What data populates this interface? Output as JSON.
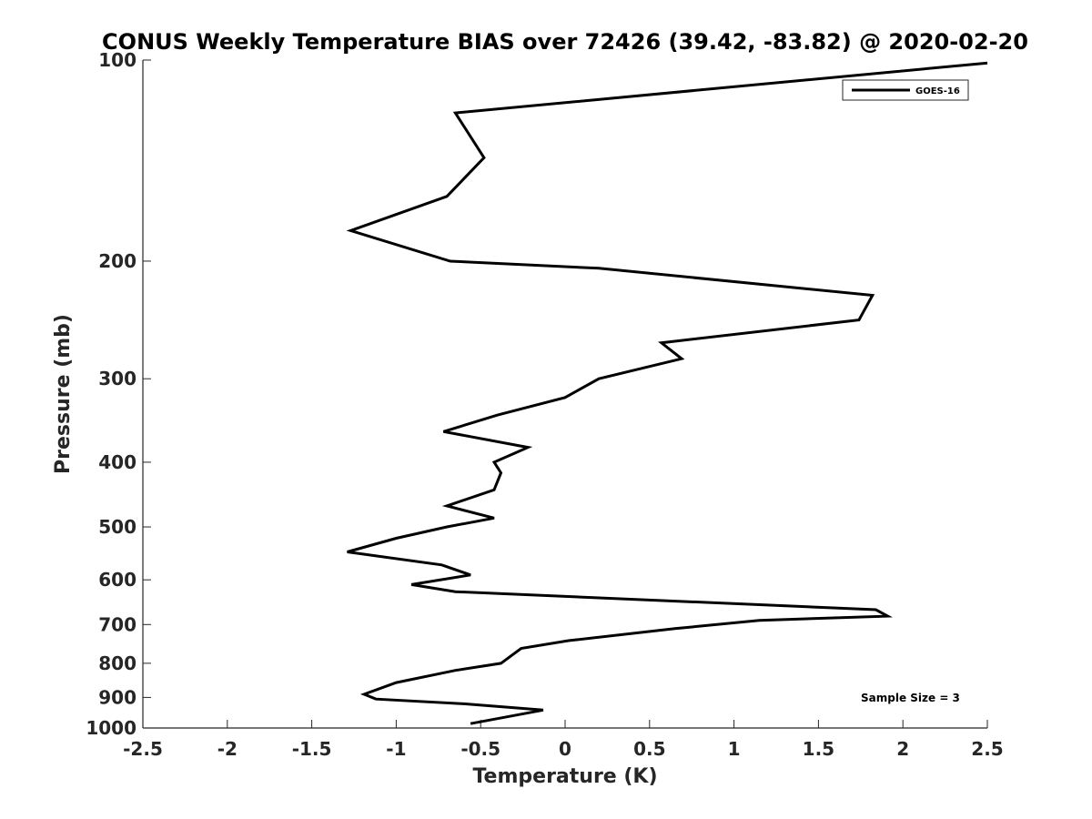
{
  "chart_data": {
    "type": "line",
    "title": "CONUS Weekly Temperature BIAS over 72426 (39.42, -83.82) @ 2020-02-20",
    "xlabel": "Temperature (K)",
    "ylabel": "Pressure (mb)",
    "xlim": [
      -2.5,
      2.5
    ],
    "ylim": [
      1000,
      100
    ],
    "y_scale": "log",
    "y_reversed": true,
    "x_ticks": [
      "-2.5",
      "-2",
      "-1.5",
      "-1",
      "-0.5",
      "0",
      "0.5",
      "1",
      "1.5",
      "2",
      "2.5"
    ],
    "x_tick_values": [
      -2.5,
      -2,
      -1.5,
      -1,
      -0.5,
      0,
      0.5,
      1,
      1.5,
      2,
      2.5
    ],
    "y_ticks": [
      "100",
      "200",
      "300",
      "400",
      "500",
      "600",
      "700",
      "800",
      "900",
      "1000"
    ],
    "y_tick_values": [
      100,
      200,
      300,
      400,
      500,
      600,
      700,
      800,
      900,
      1000
    ],
    "grid": false,
    "legend_position": "top-right",
    "annotation": "Sample Size = 3",
    "series": [
      {
        "name": "GOES-16",
        "color": "#000000",
        "points": [
          {
            "x": 2.5,
            "y": 101
          },
          {
            "x": -0.65,
            "y": 120
          },
          {
            "x": -0.48,
            "y": 140
          },
          {
            "x": -0.7,
            "y": 160
          },
          {
            "x": -1.27,
            "y": 180
          },
          {
            "x": -0.68,
            "y": 200
          },
          {
            "x": 0.2,
            "y": 205
          },
          {
            "x": 1.82,
            "y": 225
          },
          {
            "x": 1.74,
            "y": 245
          },
          {
            "x": 0.57,
            "y": 265
          },
          {
            "x": 0.69,
            "y": 280
          },
          {
            "x": 0.2,
            "y": 300
          },
          {
            "x": 0.0,
            "y": 320
          },
          {
            "x": -0.4,
            "y": 340
          },
          {
            "x": -0.72,
            "y": 360
          },
          {
            "x": -0.22,
            "y": 380
          },
          {
            "x": -0.42,
            "y": 400
          },
          {
            "x": -0.38,
            "y": 415
          },
          {
            "x": -0.42,
            "y": 440
          },
          {
            "x": -0.7,
            "y": 465
          },
          {
            "x": -0.42,
            "y": 485
          },
          {
            "x": -0.7,
            "y": 500
          },
          {
            "x": -1.0,
            "y": 520
          },
          {
            "x": -1.29,
            "y": 545
          },
          {
            "x": -0.73,
            "y": 570
          },
          {
            "x": -0.56,
            "y": 590
          },
          {
            "x": -0.91,
            "y": 610
          },
          {
            "x": -0.65,
            "y": 625
          },
          {
            "x": 1.84,
            "y": 665
          },
          {
            "x": 1.91,
            "y": 680
          },
          {
            "x": 1.15,
            "y": 690
          },
          {
            "x": 0.65,
            "y": 710
          },
          {
            "x": 0.02,
            "y": 740
          },
          {
            "x": -0.26,
            "y": 760
          },
          {
            "x": -0.38,
            "y": 800
          },
          {
            "x": -0.65,
            "y": 820
          },
          {
            "x": -1.0,
            "y": 855
          },
          {
            "x": -1.19,
            "y": 890
          },
          {
            "x": -1.12,
            "y": 905
          },
          {
            "x": -0.6,
            "y": 920
          },
          {
            "x": -0.13,
            "y": 940
          },
          {
            "x": -0.56,
            "y": 985
          }
        ]
      }
    ]
  }
}
